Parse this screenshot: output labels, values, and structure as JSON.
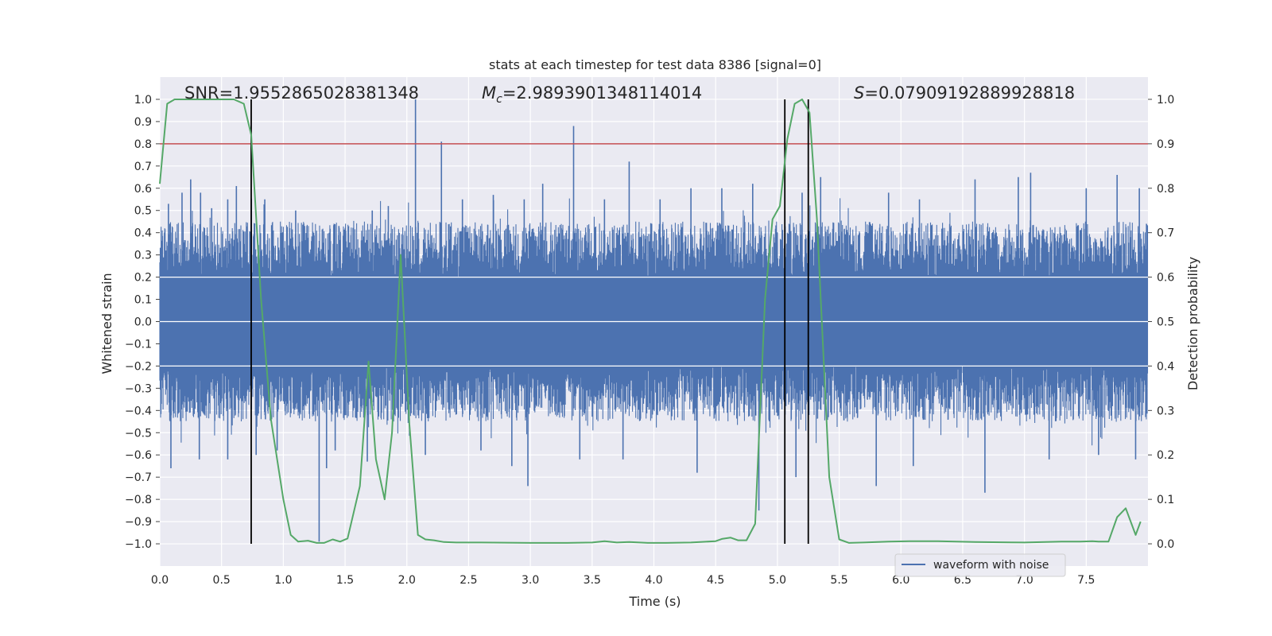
{
  "chart_data": {
    "type": "line",
    "title": "stats at each timestep for test data 8386 [signal=0]",
    "xlabel": "Time (s)",
    "ylabel": "Whitened strain",
    "y2label": "Detection probability",
    "xlim": [
      0.0,
      8.0
    ],
    "ylim": [
      -1.1,
      1.1
    ],
    "y2lim": [
      -0.05,
      1.05
    ],
    "xticks": [
      "0.0",
      "0.5",
      "1.0",
      "1.5",
      "2.0",
      "2.5",
      "3.0",
      "3.5",
      "4.0",
      "4.5",
      "5.0",
      "5.5",
      "6.0",
      "6.5",
      "7.0",
      "7.5"
    ],
    "yticks": [
      "1.0",
      "0.9",
      "0.8",
      "0.7",
      "0.6",
      "0.5",
      "0.4",
      "0.3",
      "0.2",
      "0.1",
      "0.0",
      "−0.1",
      "−0.2",
      "−0.3",
      "−0.4",
      "−0.5",
      "−0.6",
      "−0.7",
      "−0.8",
      "−0.9",
      "−1.0"
    ],
    "y2ticks": [
      "1.0",
      "0.9",
      "0.8",
      "0.7",
      "0.6",
      "0.5",
      "0.4",
      "0.3",
      "0.2",
      "0.1",
      "0.0"
    ],
    "grid": true,
    "legend": {
      "location": "lower-right",
      "entries": [
        "waveform with noise"
      ]
    },
    "annotations": {
      "snr": "SNR=1.9552865028381348",
      "mc": "=2.9893901348114014",
      "mc_symbol": "M",
      "mc_sub": "c",
      "s": "=0.07909192889928818",
      "s_symbol": "S"
    },
    "threshold_line": {
      "y2": 0.9,
      "color": "#c44e52"
    },
    "vertical_lines_x": [
      0.74,
      5.06,
      5.25
    ],
    "noise_series": {
      "name": "waveform with noise",
      "color": "#4c72b0",
      "typical_envelope": [
        -0.45,
        0.45
      ],
      "spikes": [
        [
          0.07,
          0.53
        ],
        [
          0.18,
          0.58
        ],
        [
          0.25,
          0.64
        ],
        [
          0.33,
          0.58
        ],
        [
          0.42,
          0.51
        ],
        [
          0.55,
          0.55
        ],
        [
          0.62,
          0.61
        ],
        [
          0.85,
          0.55
        ],
        [
          1.1,
          0.5
        ],
        [
          1.45,
          0.43
        ],
        [
          1.72,
          0.5
        ],
        [
          1.85,
          0.52
        ],
        [
          2.07,
          1.0
        ],
        [
          2.28,
          0.81
        ],
        [
          2.45,
          0.55
        ],
        [
          2.7,
          0.57
        ],
        [
          2.95,
          0.55
        ],
        [
          3.1,
          0.62
        ],
        [
          3.35,
          0.88
        ],
        [
          3.6,
          0.55
        ],
        [
          3.8,
          0.72
        ],
        [
          4.05,
          0.55
        ],
        [
          4.3,
          0.6
        ],
        [
          4.55,
          0.6
        ],
        [
          4.8,
          0.62
        ],
        [
          5.2,
          0.58
        ],
        [
          5.35,
          0.65
        ],
        [
          5.9,
          0.58
        ],
        [
          6.15,
          0.55
        ],
        [
          6.6,
          0.64
        ],
        [
          6.95,
          0.65
        ],
        [
          7.05,
          0.67
        ],
        [
          7.5,
          0.6
        ],
        [
          7.75,
          0.66
        ],
        [
          7.93,
          0.6
        ],
        [
          0.09,
          -0.66
        ],
        [
          0.32,
          -0.62
        ],
        [
          0.55,
          -0.62
        ],
        [
          0.78,
          -0.6
        ],
        [
          0.95,
          -0.58
        ],
        [
          1.29,
          -0.99
        ],
        [
          1.35,
          -0.66
        ],
        [
          1.42,
          -0.58
        ],
        [
          1.68,
          -0.63
        ],
        [
          2.15,
          -0.6
        ],
        [
          2.6,
          -0.58
        ],
        [
          2.85,
          -0.65
        ],
        [
          2.98,
          -0.74
        ],
        [
          3.4,
          -0.62
        ],
        [
          3.75,
          -0.62
        ],
        [
          4.35,
          -0.68
        ],
        [
          4.85,
          -0.85
        ],
        [
          5.15,
          -0.7
        ],
        [
          5.8,
          -0.74
        ],
        [
          6.1,
          -0.65
        ],
        [
          6.68,
          -0.77
        ],
        [
          7.2,
          -0.62
        ],
        [
          7.6,
          -0.6
        ],
        [
          7.9,
          -0.62
        ]
      ]
    },
    "probability_series": {
      "color": "#55a868",
      "x": [
        0.0,
        0.06,
        0.12,
        0.2,
        0.3,
        0.4,
        0.5,
        0.6,
        0.68,
        0.74,
        0.82,
        0.9,
        1.0,
        1.06,
        1.12,
        1.2,
        1.27,
        1.33,
        1.4,
        1.46,
        1.52,
        1.62,
        1.69,
        1.75,
        1.82,
        1.88,
        1.95,
        2.02,
        2.09,
        2.15,
        2.22,
        2.3,
        2.4,
        2.6,
        3.0,
        3.3,
        3.5,
        3.6,
        3.7,
        3.8,
        3.95,
        4.1,
        4.3,
        4.5,
        4.55,
        4.62,
        4.68,
        4.75,
        4.82,
        4.9,
        4.96,
        5.02,
        5.08,
        5.14,
        5.2,
        5.26,
        5.32,
        5.42,
        5.5,
        5.58,
        5.7,
        5.9,
        6.1,
        6.3,
        6.6,
        7.0,
        7.3,
        7.45,
        7.55,
        7.6,
        7.68,
        7.75,
        7.82,
        7.9,
        7.94
      ],
      "y": [
        0.81,
        0.99,
        1.0,
        1.0,
        1.0,
        1.0,
        1.0,
        1.0,
        0.99,
        0.92,
        0.55,
        0.28,
        0.1,
        0.02,
        0.005,
        0.007,
        0.002,
        0.002,
        0.01,
        0.005,
        0.012,
        0.13,
        0.41,
        0.19,
        0.1,
        0.25,
        0.65,
        0.27,
        0.02,
        0.01,
        0.008,
        0.004,
        0.003,
        0.003,
        0.002,
        0.002,
        0.003,
        0.006,
        0.003,
        0.004,
        0.002,
        0.002,
        0.003,
        0.006,
        0.011,
        0.014,
        0.008,
        0.008,
        0.045,
        0.55,
        0.73,
        0.76,
        0.91,
        0.99,
        1.0,
        0.97,
        0.73,
        0.15,
        0.01,
        0.002,
        0.003,
        0.005,
        0.006,
        0.006,
        0.004,
        0.003,
        0.005,
        0.005,
        0.006,
        0.005,
        0.005,
        0.06,
        0.08,
        0.02,
        0.05
      ]
    }
  }
}
